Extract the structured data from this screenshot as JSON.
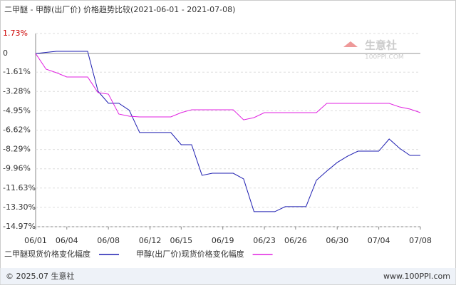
{
  "chart_data": {
    "type": "line",
    "title": "二甲醚 - 甲醇(出厂价) 价格趋势比较(2021-06-01 - 2021-07-08)",
    "categories": [
      "06/01",
      null,
      null,
      "06/04",
      null,
      null,
      null,
      "06/08",
      null,
      null,
      null,
      "06/12",
      null,
      null,
      "06/15",
      null,
      null,
      null,
      "06/19",
      null,
      null,
      null,
      "06/23",
      null,
      null,
      "06/26",
      null,
      null,
      null,
      "06/30",
      null,
      null,
      null,
      "07/04",
      null,
      null,
      null,
      "07/08"
    ],
    "series": [
      {
        "name": "二甲醚现货价格变化幅度",
        "color": "#1c1cb0",
        "values": [
          0,
          0.1,
          0.19,
          0.19,
          0.19,
          0.19,
          -3.26,
          -4.3,
          -4.3,
          -4.9,
          -6.83,
          -6.83,
          -6.83,
          -6.83,
          -7.88,
          -7.88,
          -10.53,
          -10.35,
          -10.35,
          -10.35,
          -10.84,
          -13.67,
          -13.67,
          -13.67,
          -13.24,
          -13.24,
          -13.24,
          -10.96,
          -10.16,
          -9.42,
          -8.87,
          -8.44,
          -8.44,
          -8.44,
          -7.39,
          -8.19,
          -8.81,
          -8.81
        ]
      },
      {
        "name": "甲醇(出厂价)现货价格变化幅度",
        "color": "#e020e0",
        "values": [
          0,
          -1.35,
          -1.66,
          -2.03,
          -2.03,
          -2.03,
          -3.38,
          -3.51,
          -5.23,
          -5.42,
          -5.48,
          -5.48,
          -5.48,
          -5.48,
          -5.11,
          -4.86,
          -4.86,
          -4.86,
          -4.86,
          -4.86,
          -5.73,
          -5.54,
          -5.11,
          -5.11,
          -5.11,
          -5.11,
          -5.11,
          -5.11,
          -4.31,
          -4.31,
          -4.31,
          -4.31,
          -4.31,
          -4.31,
          -4.31,
          -4.62,
          -4.8,
          -5.11
        ]
      }
    ],
    "ylim": [
      -14.97,
      1.73
    ],
    "yticks": [
      {
        "value": 1.73,
        "label": "1.73%"
      },
      0,
      {
        "value": -1.61,
        "label": "-1.61%"
      },
      {
        "value": -3.28,
        "label": "-3.28%"
      },
      {
        "value": -4.95,
        "label": "-4.95%"
      },
      {
        "value": -6.62,
        "label": "-6.62%"
      },
      {
        "value": -8.29,
        "label": "-8.29%"
      },
      {
        "value": -9.96,
        "label": "-9.96%"
      },
      {
        "value": -11.63,
        "label": "-11.63%"
      },
      {
        "value": -13.3,
        "label": "-13.30%"
      },
      {
        "value": -14.97,
        "label": "-14.97%"
      }
    ],
    "grid": true
  },
  "watermark": {
    "name": "生意社",
    "site": "100PPI.COM"
  },
  "footer": {
    "left": "© 2025.07 生意社",
    "right": "www.100PPI.com"
  }
}
